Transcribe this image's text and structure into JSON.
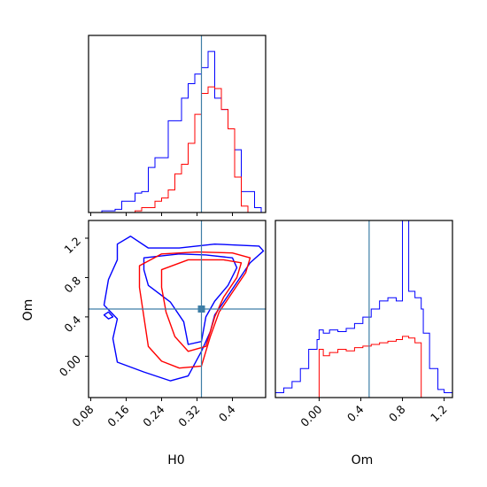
{
  "chart_data": {
    "type": "corner",
    "parameters": [
      "H0",
      "Om"
    ],
    "axis_labels": {
      "x_left": "H0",
      "x_right": "Om",
      "y_left": "Om"
    },
    "colors": {
      "series_a": "#0000ff",
      "series_b": "#ff0000",
      "truth": "#3d7ea6"
    },
    "truth": {
      "H0": 0.33,
      "Om": 0.48
    },
    "panels": [
      {
        "id": "h0-hist",
        "type": "histogram",
        "param": "H0",
        "xlim": [
          0.075,
          0.475
        ],
        "ylim": [
          0,
          1.1
        ],
        "x_ticks": [
          0.08,
          0.16,
          0.24,
          0.32,
          0.4
        ],
        "y_ticks": [],
        "bins": [
          0.075,
          0.09,
          0.105,
          0.12,
          0.135,
          0.15,
          0.165,
          0.18,
          0.195,
          0.21,
          0.225,
          0.24,
          0.255,
          0.27,
          0.285,
          0.3,
          0.315,
          0.33,
          0.345,
          0.36,
          0.375,
          0.39,
          0.405,
          0.42,
          0.435,
          0.45,
          0.465
        ],
        "series": [
          {
            "color_key": "series_a",
            "values": [
              0.0,
              0.0,
              0.01,
              0.01,
              0.02,
              0.07,
              0.07,
              0.12,
              0.13,
              0.28,
              0.34,
              0.34,
              0.57,
              0.57,
              0.71,
              0.8,
              0.86,
              0.9,
              1.0,
              0.71,
              0.64,
              0.52,
              0.39,
              0.13,
              0.13,
              0.03
            ]
          },
          {
            "color_key": "series_b",
            "values": [
              0.0,
              0.0,
              0.0,
              0.0,
              0.0,
              0.0,
              0.0,
              0.01,
              0.03,
              0.03,
              0.07,
              0.09,
              0.14,
              0.24,
              0.3,
              0.43,
              0.61,
              0.74,
              0.78,
              0.77,
              0.64,
              0.52,
              0.22,
              0.04,
              0.0,
              0.0
            ]
          }
        ]
      },
      {
        "id": "om-hist",
        "type": "histogram",
        "param": "Om",
        "xlim": [
          -0.42,
          1.28
        ],
        "ylim": [
          0,
          1.1
        ],
        "x_ticks": [
          0.0,
          0.4,
          0.8,
          1.2
        ],
        "y_ticks": [],
        "bins": [
          -0.42,
          -0.34,
          -0.26,
          -0.18,
          -0.1,
          -0.02,
          0.0,
          0.04,
          0.1,
          0.18,
          0.26,
          0.34,
          0.42,
          0.5,
          0.58,
          0.66,
          0.74,
          0.8,
          0.86,
          0.92,
          0.98,
          1.0,
          1.06,
          1.14,
          1.2,
          1.28
        ],
        "series": [
          {
            "color_key": "series_a",
            "values": [
              0.03,
              0.06,
              0.1,
              0.18,
              0.3,
              0.36,
              0.42,
              0.4,
              0.42,
              0.41,
              0.43,
              0.46,
              0.5,
              0.55,
              0.6,
              0.62,
              0.6,
              1.1,
              0.66,
              0.62,
              0.55,
              0.4,
              0.18,
              0.05,
              0.03
            ]
          },
          {
            "color_key": "series_b",
            "values": [
              0.0,
              0.0,
              0.0,
              0.0,
              0.0,
              0.0,
              0.3,
              0.26,
              0.28,
              0.3,
              0.29,
              0.31,
              0.32,
              0.33,
              0.34,
              0.35,
              0.36,
              0.38,
              0.37,
              0.34,
              0.0,
              0.0,
              0.0,
              0.0,
              0.0
            ]
          }
        ]
      },
      {
        "id": "h0-om-contour",
        "type": "contour",
        "x_param": "H0",
        "y_param": "Om",
        "xlim": [
          0.075,
          0.475
        ],
        "ylim": [
          -0.42,
          1.38
        ],
        "x_ticks": [
          0.08,
          0.16,
          0.24,
          0.32,
          0.4
        ],
        "y_ticks": [
          0.0,
          0.4,
          0.8,
          1.2
        ],
        "contours": [
          {
            "color_key": "series_a",
            "level": "outer",
            "points": [
              [
                0.14,
                1.14
              ],
              [
                0.17,
                1.22
              ],
              [
                0.21,
                1.1
              ],
              [
                0.28,
                1.1
              ],
              [
                0.36,
                1.14
              ],
              [
                0.46,
                1.12
              ],
              [
                0.47,
                1.07
              ],
              [
                0.44,
                0.95
              ],
              [
                0.41,
                0.75
              ],
              [
                0.38,
                0.55
              ],
              [
                0.36,
                0.42
              ],
              [
                0.35,
                0.25
              ],
              [
                0.33,
                0.05
              ],
              [
                0.3,
                -0.2
              ],
              [
                0.26,
                -0.25
              ],
              [
                0.2,
                -0.16
              ],
              [
                0.14,
                -0.06
              ],
              [
                0.13,
                0.18
              ],
              [
                0.14,
                0.38
              ],
              [
                0.11,
                0.52
              ],
              [
                0.12,
                0.78
              ],
              [
                0.14,
                0.98
              ],
              [
                0.14,
                1.14
              ]
            ]
          },
          {
            "color_key": "series_a",
            "level": "inner",
            "points": [
              [
                0.2,
                1.0
              ],
              [
                0.28,
                1.04
              ],
              [
                0.34,
                1.03
              ],
              [
                0.4,
                1.0
              ],
              [
                0.41,
                0.9
              ],
              [
                0.39,
                0.72
              ],
              [
                0.36,
                0.56
              ],
              [
                0.34,
                0.4
              ],
              [
                0.33,
                0.15
              ],
              [
                0.3,
                0.12
              ],
              [
                0.29,
                0.35
              ],
              [
                0.26,
                0.55
              ],
              [
                0.21,
                0.72
              ],
              [
                0.2,
                0.88
              ],
              [
                0.2,
                1.0
              ]
            ]
          },
          {
            "color_key": "series_a",
            "level": "small",
            "points": [
              [
                0.11,
                0.42
              ],
              [
                0.12,
                0.45
              ],
              [
                0.13,
                0.4
              ],
              [
                0.12,
                0.38
              ],
              [
                0.11,
                0.42
              ]
            ]
          },
          {
            "color_key": "series_b",
            "level": "outer",
            "points": [
              [
                0.19,
                0.92
              ],
              [
                0.24,
                1.04
              ],
              [
                0.32,
                1.06
              ],
              [
                0.4,
                1.05
              ],
              [
                0.44,
                1.0
              ],
              [
                0.43,
                0.85
              ],
              [
                0.4,
                0.65
              ],
              [
                0.37,
                0.45
              ],
              [
                0.35,
                0.2
              ],
              [
                0.33,
                -0.1
              ],
              [
                0.28,
                -0.12
              ],
              [
                0.24,
                -0.05
              ],
              [
                0.21,
                0.1
              ],
              [
                0.2,
                0.4
              ],
              [
                0.19,
                0.7
              ],
              [
                0.19,
                0.92
              ]
            ]
          },
          {
            "color_key": "series_b",
            "level": "inner",
            "points": [
              [
                0.24,
                0.88
              ],
              [
                0.3,
                0.98
              ],
              [
                0.38,
                0.98
              ],
              [
                0.42,
                0.95
              ],
              [
                0.41,
                0.8
              ],
              [
                0.38,
                0.6
              ],
              [
                0.36,
                0.4
              ],
              [
                0.34,
                0.1
              ],
              [
                0.3,
                0.05
              ],
              [
                0.27,
                0.2
              ],
              [
                0.25,
                0.45
              ],
              [
                0.24,
                0.7
              ],
              [
                0.24,
                0.88
              ]
            ]
          }
        ]
      }
    ]
  }
}
